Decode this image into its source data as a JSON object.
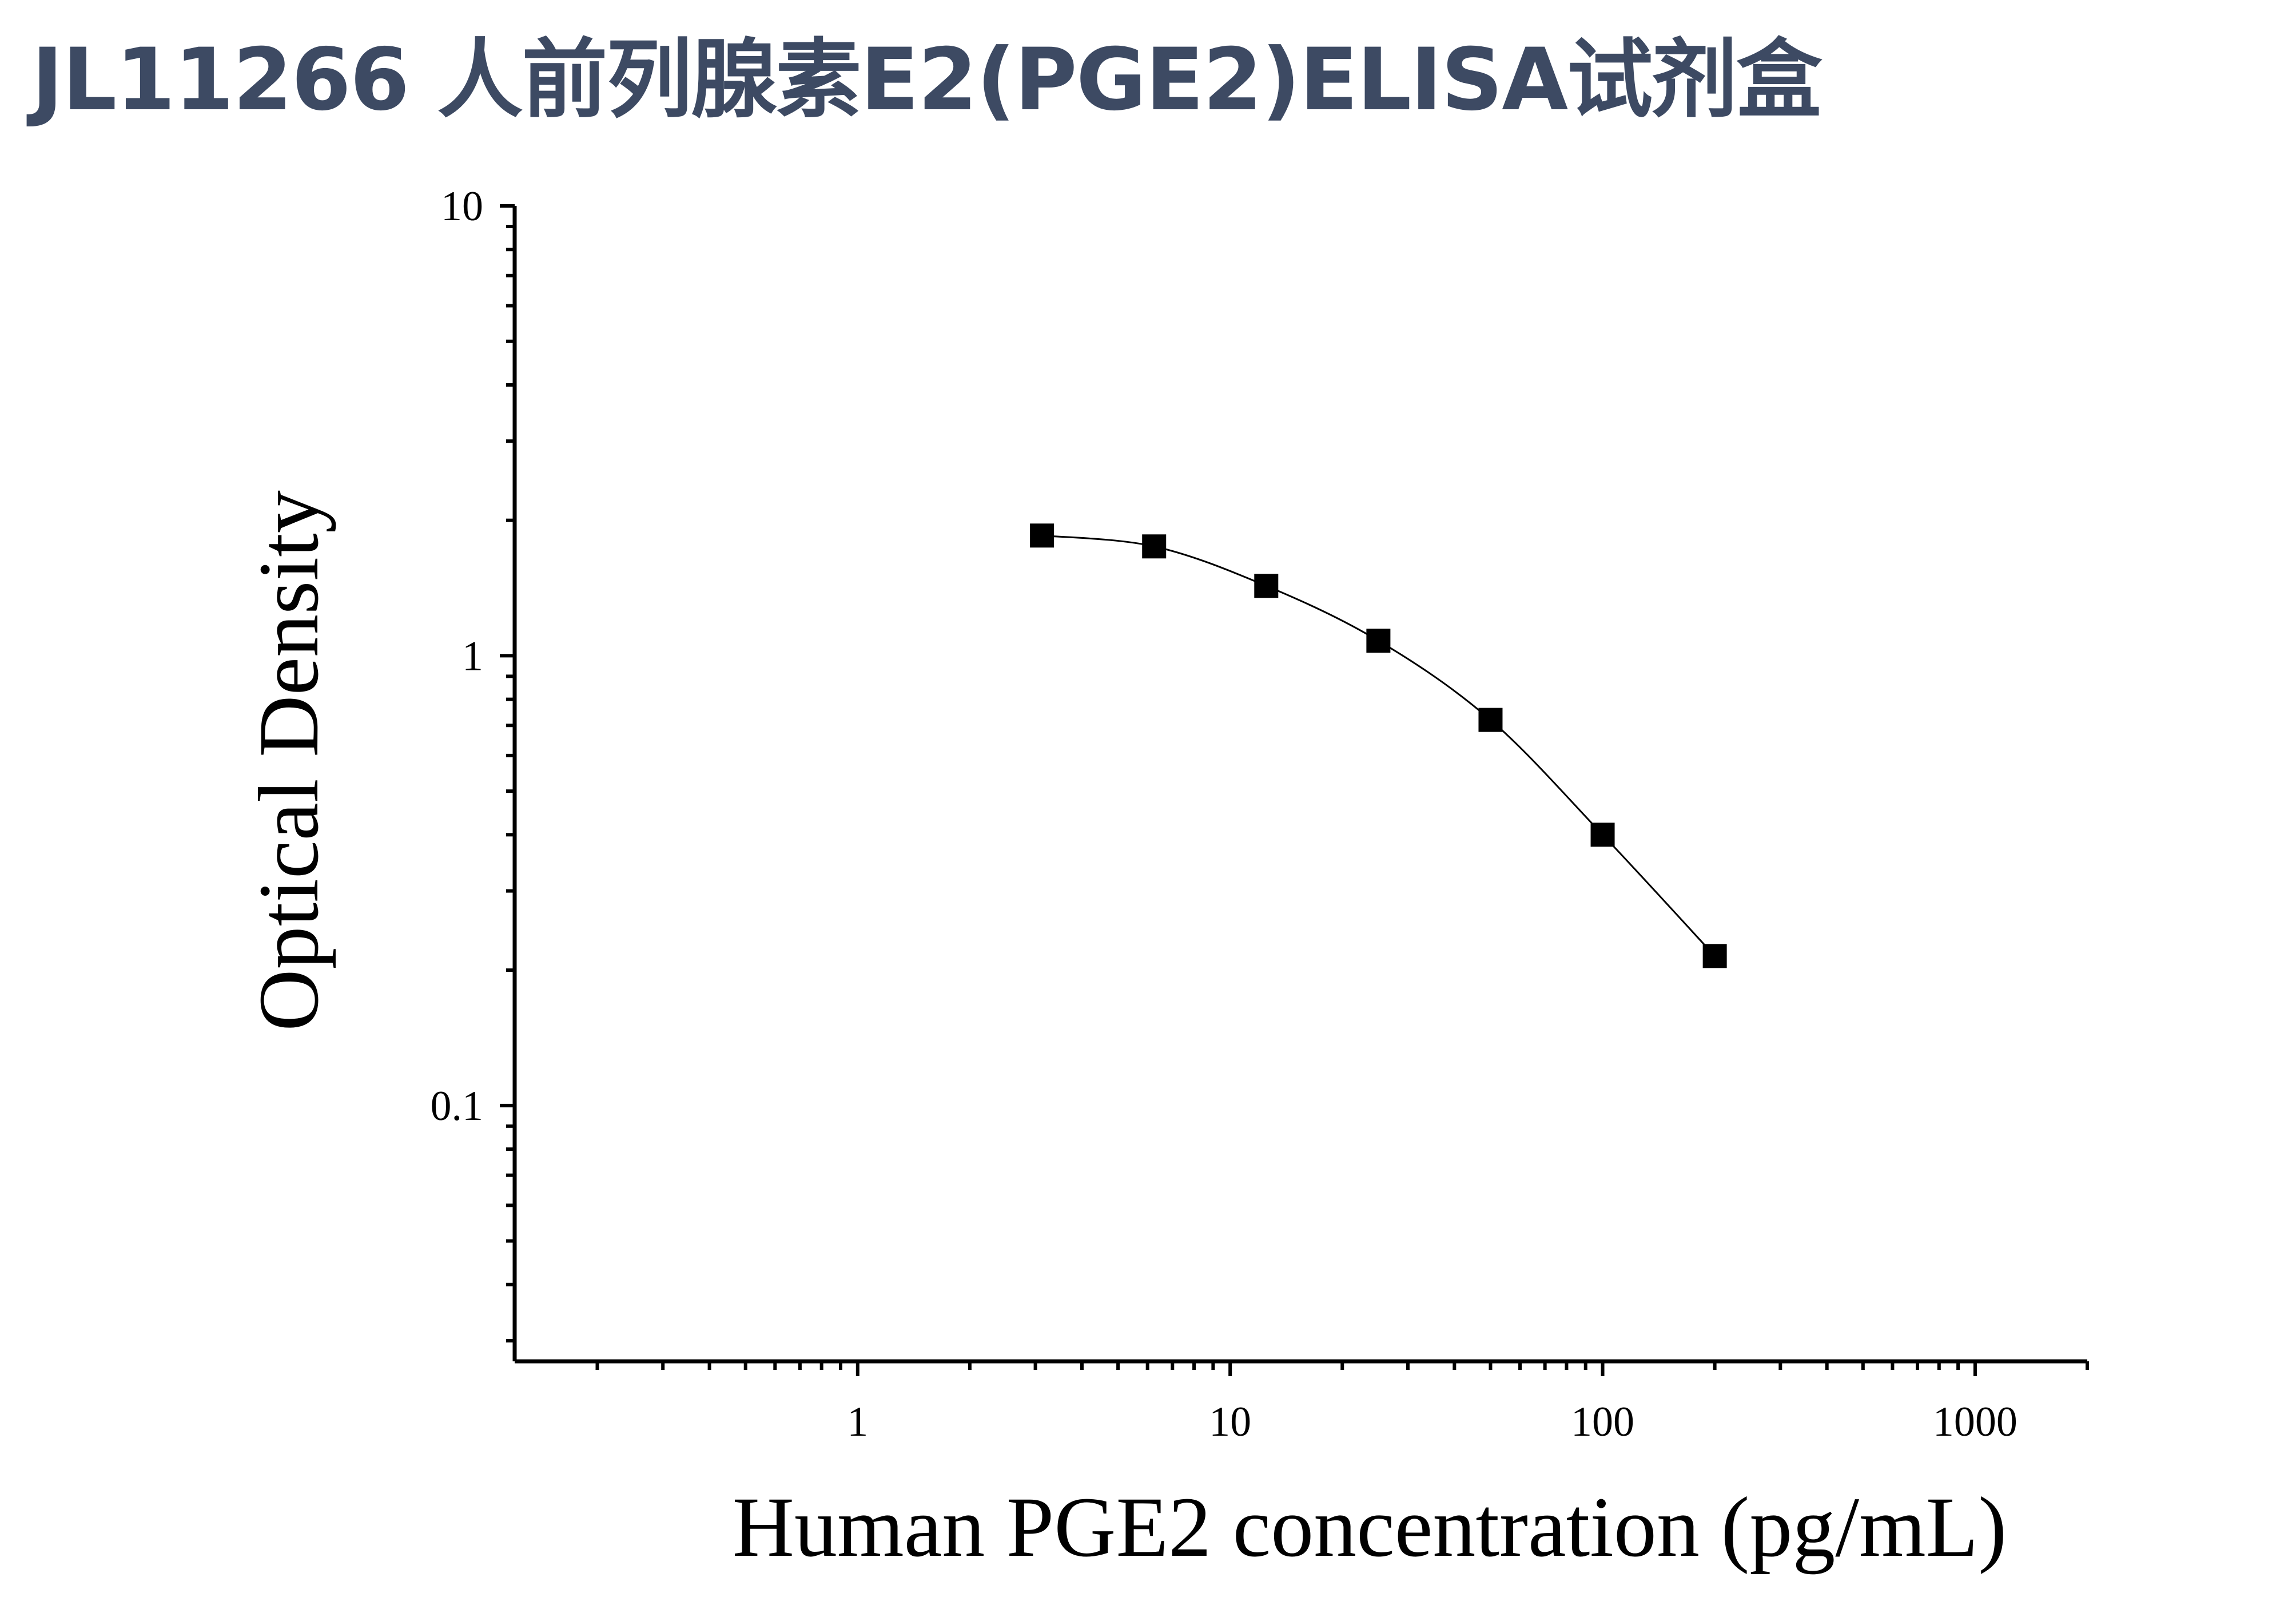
{
  "header": {
    "title": "JL11266 人前列腺素E2(PGE2)ELISA试剂盒"
  },
  "chart_data": {
    "type": "scatter",
    "title": "JL11266 人前列腺素E2(PGE2)ELISA试剂盒",
    "xlabel": "Human PGE2 concentration (pg/mL)",
    "ylabel": "Optical Density",
    "x_scale": "log",
    "y_scale": "log",
    "xlim": [
      0.12,
      2000
    ],
    "ylim": [
      0.027,
      10
    ],
    "x_ticks": [
      {
        "value": 1,
        "label": "1"
      },
      {
        "value": 10,
        "label": "10"
      },
      {
        "value": 100,
        "label": "100"
      },
      {
        "value": 1000,
        "label": "1000"
      }
    ],
    "y_ticks": [
      {
        "value": 0.1,
        "label": "0.1"
      },
      {
        "value": 1,
        "label": "1"
      },
      {
        "value": 10,
        "label": "10"
      }
    ],
    "grid": false,
    "legend": "none",
    "marker": "square",
    "fit_line": true,
    "color": "#000000",
    "series": [
      {
        "x": [
          3.125,
          6.25,
          12.5,
          25,
          50,
          100,
          200
        ],
        "y": [
          1.85,
          1.75,
          1.43,
          1.08,
          0.72,
          0.4,
          0.215
        ]
      }
    ]
  }
}
